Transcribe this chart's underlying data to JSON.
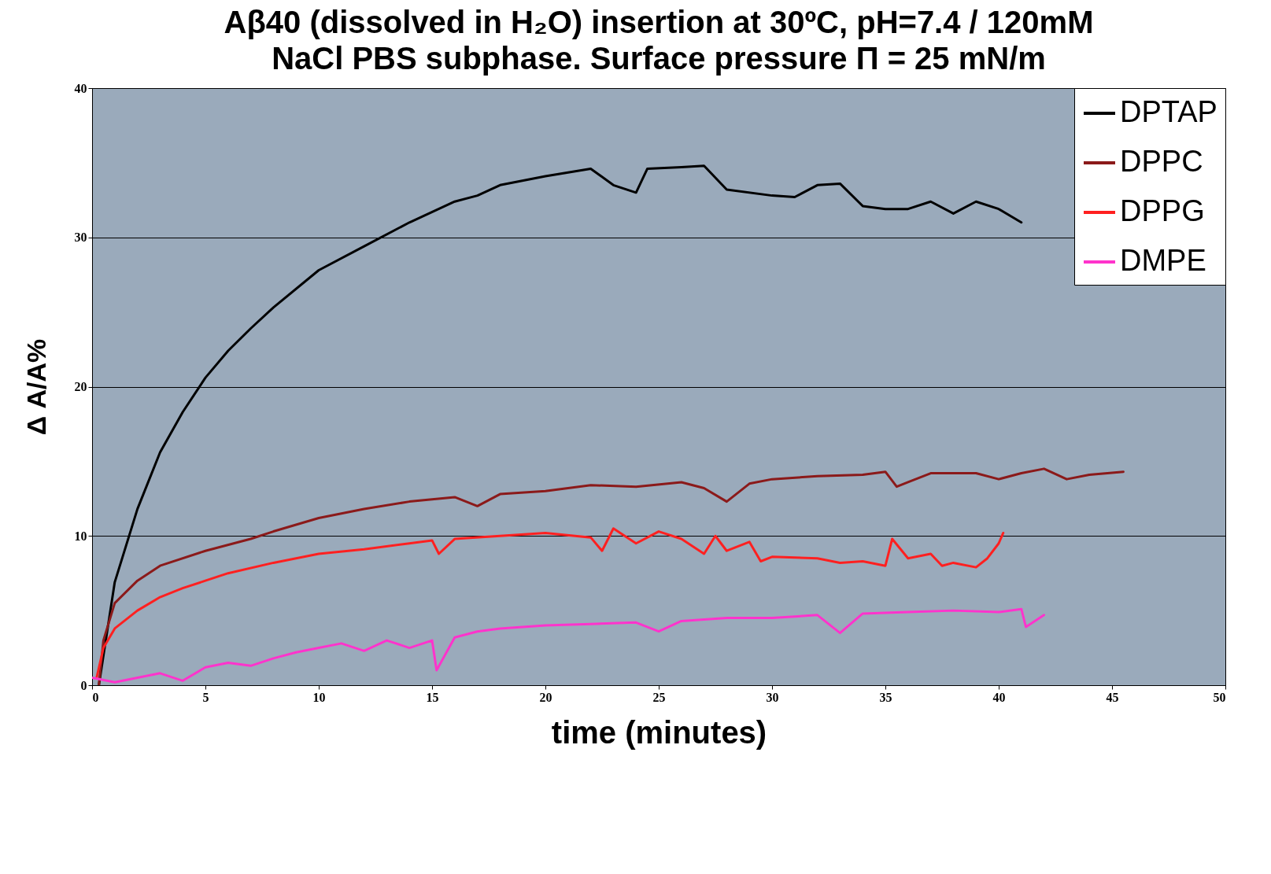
{
  "chart_data": {
    "type": "line",
    "title": "Aβ40 (dissolved in H₂O) insertion at 30ºC, pH=7.4 / 120mM\nNaCl PBS subphase. Surface pressure Π = 25 mN/m",
    "xlabel": "time (minutes)",
    "ylabel": "Δ A/A%",
    "xlim": [
      0,
      50
    ],
    "xticks": [
      0,
      5,
      10,
      15,
      20,
      25,
      30,
      35,
      40,
      45,
      50
    ],
    "ylim": [
      0,
      40
    ],
    "yticks": [
      0,
      10,
      20,
      30,
      40
    ],
    "grid": "y",
    "legend": "top right",
    "line_style": "solid",
    "marker": "none",
    "series": [
      {
        "name": "DPTAP",
        "color": "#000000",
        "x": [
          0.3,
          1,
          2,
          3,
          4,
          5,
          6,
          7,
          8,
          10,
          12,
          14,
          16,
          17,
          18,
          20,
          22,
          23,
          24,
          24.5,
          26,
          27,
          28,
          30,
          31,
          32,
          33,
          34,
          35,
          36,
          37,
          38,
          39,
          40,
          41
        ],
        "values": [
          0,
          6.9,
          11.8,
          15.6,
          18.3,
          20.6,
          22.4,
          23.9,
          25.3,
          27.8,
          29.4,
          31,
          32.4,
          32.8,
          33.5,
          34.1,
          34.6,
          33.5,
          33,
          34.6,
          34.7,
          34.8,
          33.2,
          32.8,
          32.7,
          33.5,
          33.6,
          32.1,
          31.9,
          31.9,
          32.4,
          31.6,
          32.4,
          31.9,
          31
        ]
      },
      {
        "name": "DPPC",
        "color": "#8b1a1a",
        "x": [
          0.3,
          0.5,
          1,
          2,
          3,
          5,
          7,
          8,
          10,
          12,
          14,
          16,
          17,
          18,
          20,
          22,
          24,
          26,
          27,
          28,
          29,
          30,
          32,
          34,
          35,
          35.5,
          36,
          37,
          39,
          40,
          41,
          42,
          43,
          44,
          45.5
        ],
        "values": [
          0,
          3,
          5.5,
          7,
          8,
          9,
          9.8,
          10.3,
          11.2,
          11.8,
          12.3,
          12.6,
          12,
          12.8,
          13,
          13.4,
          13.3,
          13.6,
          13.2,
          12.3,
          13.5,
          13.8,
          14,
          14.1,
          14.3,
          13.3,
          13.6,
          14.2,
          14.2,
          13.8,
          14.2,
          14.5,
          13.8,
          14.1,
          14.3
        ]
      },
      {
        "name": "DPPG",
        "color": "#ff2020",
        "x": [
          0.2,
          0.5,
          1,
          2,
          3,
          4,
          5,
          6,
          8,
          10,
          12,
          14,
          15,
          15.3,
          16,
          18,
          20,
          22,
          22.5,
          23,
          24,
          25,
          26,
          27,
          27.5,
          28,
          29,
          29.5,
          30,
          32,
          33,
          34,
          35,
          35.3,
          36,
          37,
          37.5,
          38,
          39,
          39.5,
          40,
          40.2
        ],
        "values": [
          0.5,
          2.5,
          3.8,
          5,
          5.9,
          6.5,
          7,
          7.5,
          8.2,
          8.8,
          9.1,
          9.5,
          9.7,
          8.8,
          9.8,
          10,
          10.2,
          9.9,
          9,
          10.5,
          9.5,
          10.3,
          9.8,
          8.8,
          10,
          9,
          9.6,
          8.3,
          8.6,
          8.5,
          8.2,
          8.3,
          8,
          9.8,
          8.5,
          8.8,
          8,
          8.2,
          7.9,
          8.5,
          9.5,
          10.2
        ]
      },
      {
        "name": "DMPE",
        "color": "#ff33cc",
        "x": [
          0,
          1,
          2,
          3,
          4,
          5,
          6,
          7,
          8,
          9,
          10,
          11,
          12,
          13,
          14,
          15,
          15.2,
          16,
          17,
          18,
          20,
          22,
          24,
          25,
          26,
          28,
          30,
          32,
          33,
          34,
          36,
          38,
          40,
          41,
          41.2,
          42
        ],
        "values": [
          0.5,
          0.2,
          0.5,
          0.8,
          0.3,
          1.2,
          1.5,
          1.3,
          1.8,
          2.2,
          2.5,
          2.8,
          2.3,
          3,
          2.5,
          3,
          1,
          3.2,
          3.6,
          3.8,
          4,
          4.1,
          4.2,
          3.6,
          4.3,
          4.5,
          4.5,
          4.7,
          3.5,
          4.8,
          4.9,
          5,
          4.9,
          5.1,
          3.9,
          4.7
        ]
      }
    ]
  }
}
